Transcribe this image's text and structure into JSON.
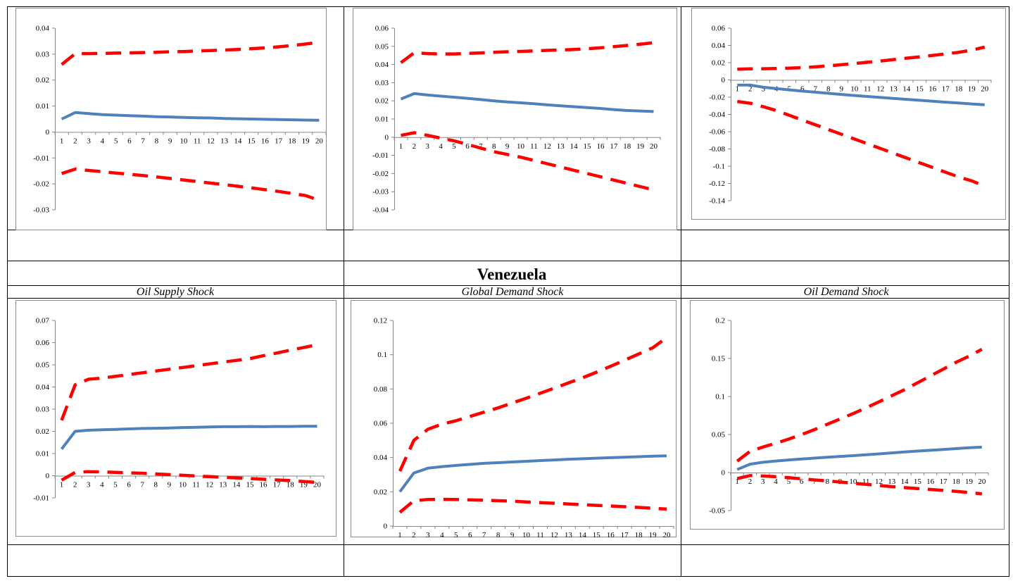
{
  "header": {
    "country": "Venezuela",
    "shock_labels": [
      "Oil Supply Shock",
      "Global Demand Shock",
      "Oil Demand Shock"
    ]
  },
  "colors": {
    "response": "#4f81bd",
    "bands": "#ff0000",
    "grid_border": "#000000",
    "chart_border": "#8c8c8c"
  },
  "chart_data": [
    {
      "type": "line",
      "row": "top",
      "x": [
        1,
        2,
        3,
        4,
        5,
        6,
        7,
        8,
        9,
        10,
        11,
        12,
        13,
        14,
        15,
        16,
        17,
        18,
        19,
        20
      ],
      "ylim": [
        -0.03,
        0.04
      ],
      "yticks": [
        "0.04",
        "0.03",
        "0.02",
        "0.01",
        "0",
        "-0.01",
        "-0.02",
        "-0.03"
      ],
      "ytick_values": [
        0.04,
        0.03,
        0.02,
        0.01,
        0,
        -0.01,
        -0.02,
        -0.03
      ],
      "series": [
        {
          "style": "solid",
          "values": [
            0.005,
            0.0075,
            0.0071,
            0.0067,
            0.0065,
            0.0063,
            0.0061,
            0.0059,
            0.0058,
            0.0056,
            0.0055,
            0.0054,
            0.0052,
            0.0051,
            0.005,
            0.0049,
            0.0048,
            0.0047,
            0.0046,
            0.0045
          ]
        },
        {
          "style": "dashed",
          "values": [
            0.026,
            0.0302,
            0.0302,
            0.0303,
            0.0304,
            0.0305,
            0.0306,
            0.0307,
            0.0309,
            0.031,
            0.0312,
            0.0314,
            0.0316,
            0.0318,
            0.0321,
            0.0324,
            0.0328,
            0.0333,
            0.0339,
            0.0346
          ]
        },
        {
          "style": "dashed",
          "values": [
            -0.016,
            -0.0143,
            -0.0148,
            -0.0153,
            -0.0158,
            -0.0163,
            -0.0168,
            -0.0173,
            -0.0179,
            -0.0185,
            -0.0191,
            -0.0197,
            -0.0203,
            -0.0209,
            -0.0215,
            -0.0222,
            -0.0229,
            -0.0237,
            -0.0245,
            -0.0263
          ]
        }
      ]
    },
    {
      "type": "line",
      "row": "top",
      "x": [
        1,
        2,
        3,
        4,
        5,
        6,
        7,
        8,
        9,
        10,
        11,
        12,
        13,
        14,
        15,
        16,
        17,
        18,
        19,
        20
      ],
      "ylim": [
        -0.04,
        0.06
      ],
      "yticks": [
        "0.06",
        "0.05",
        "0.04",
        "0.03",
        "0.02",
        "0.01",
        "0",
        "-0.01",
        "-0.02",
        "-0.03",
        "-0.04"
      ],
      "ytick_values": [
        0.06,
        0.05,
        0.04,
        0.03,
        0.02,
        0.01,
        0,
        -0.01,
        -0.02,
        -0.03,
        -0.04
      ],
      "series": [
        {
          "style": "solid",
          "values": [
            0.021,
            0.024,
            0.0232,
            0.0226,
            0.022,
            0.0214,
            0.0207,
            0.02,
            0.0194,
            0.0189,
            0.0184,
            0.0178,
            0.0173,
            0.0168,
            0.0163,
            0.0158,
            0.0152,
            0.0147,
            0.0144,
            0.0141
          ]
        },
        {
          "style": "dashed",
          "values": [
            0.041,
            0.0465,
            0.046,
            0.0458,
            0.0458,
            0.0461,
            0.0464,
            0.0467,
            0.047,
            0.0472,
            0.0475,
            0.0478,
            0.048,
            0.0483,
            0.0487,
            0.0492,
            0.0498,
            0.0505,
            0.0512,
            0.052
          ]
        },
        {
          "style": "dashed",
          "values": [
            0.001,
            0.0025,
            0.001,
            -0.0005,
            -0.002,
            -0.004,
            -0.006,
            -0.008,
            -0.0095,
            -0.011,
            -0.0128,
            -0.0146,
            -0.0164,
            -0.0182,
            -0.02,
            -0.0218,
            -0.0236,
            -0.0254,
            -0.0272,
            -0.029
          ]
        }
      ]
    },
    {
      "type": "line",
      "row": "top",
      "x": [
        1,
        2,
        3,
        4,
        5,
        6,
        7,
        8,
        9,
        10,
        11,
        12,
        13,
        14,
        15,
        16,
        17,
        18,
        19,
        20
      ],
      "ylim": [
        -0.14,
        0.06
      ],
      "yticks": [
        "0.06",
        "0.04",
        "0.02",
        "0",
        "-0.02",
        "-0.04",
        "-0.06",
        "-0.08",
        "-0.1",
        "-0.12",
        "-0.14"
      ],
      "ytick_values": [
        0.06,
        0.04,
        0.02,
        0,
        -0.02,
        -0.04,
        -0.06,
        -0.08,
        -0.1,
        -0.12,
        -0.14
      ],
      "series": [
        {
          "style": "solid",
          "values": [
            -0.006,
            -0.006,
            -0.0085,
            -0.01,
            -0.0115,
            -0.013,
            -0.0142,
            -0.0155,
            -0.0168,
            -0.018,
            -0.0192,
            -0.0203,
            -0.0214,
            -0.0225,
            -0.0236,
            -0.0247,
            -0.0258,
            -0.0268,
            -0.0278,
            -0.0288
          ]
        },
        {
          "style": "dashed",
          "values": [
            0.0125,
            0.0128,
            0.013,
            0.0133,
            0.0137,
            0.0143,
            0.0152,
            0.0163,
            0.0176,
            0.019,
            0.0205,
            0.022,
            0.0236,
            0.0252,
            0.0268,
            0.0284,
            0.0302,
            0.032,
            0.0345,
            0.038
          ]
        },
        {
          "style": "dashed",
          "values": [
            -0.025,
            -0.027,
            -0.031,
            -0.0355,
            -0.041,
            -0.0465,
            -0.052,
            -0.0575,
            -0.063,
            -0.0685,
            -0.074,
            -0.0795,
            -0.085,
            -0.0905,
            -0.096,
            -0.1015,
            -0.107,
            -0.1125,
            -0.117,
            -0.123
          ]
        }
      ]
    },
    {
      "type": "line",
      "row": "bottom",
      "x": [
        1,
        2,
        3,
        4,
        5,
        6,
        7,
        8,
        9,
        10,
        11,
        12,
        13,
        14,
        15,
        16,
        17,
        18,
        19,
        20
      ],
      "ylim": [
        -0.01,
        0.07
      ],
      "yticks": [
        "0.07",
        "0.06",
        "0.05",
        "0.04",
        "0.03",
        "0.02",
        "0.01",
        "0",
        "-0.01"
      ],
      "ytick_values": [
        0.07,
        0.06,
        0.05,
        0.04,
        0.03,
        0.02,
        0.01,
        0,
        -0.01
      ],
      "series": [
        {
          "style": "solid",
          "values": [
            0.012,
            0.02,
            0.0205,
            0.0207,
            0.0209,
            0.0211,
            0.0213,
            0.0214,
            0.0215,
            0.0217,
            0.0218,
            0.022,
            0.0221,
            0.0221,
            0.0222,
            0.0221,
            0.0222,
            0.0222,
            0.0223,
            0.0223
          ]
        },
        {
          "style": "dashed",
          "values": [
            0.025,
            0.041,
            0.0435,
            0.044,
            0.0448,
            0.0456,
            0.0464,
            0.0472,
            0.048,
            0.0488,
            0.0496,
            0.0504,
            0.0512,
            0.052,
            0.0528,
            0.0541,
            0.0553,
            0.0566,
            0.0578,
            0.059
          ]
        },
        {
          "style": "dashed",
          "values": [
            -0.002,
            0.0015,
            0.0018,
            0.0017,
            0.0015,
            0.0013,
            0.0011,
            0.0008,
            0.0005,
            0.0002,
            -0.0001,
            -0.0004,
            -0.0007,
            -0.001,
            -0.0013,
            -0.0016,
            -0.0019,
            -0.0022,
            -0.0026,
            -0.003
          ]
        }
      ]
    },
    {
      "type": "line",
      "row": "bottom",
      "x": [
        1,
        2,
        3,
        4,
        5,
        6,
        7,
        8,
        9,
        10,
        11,
        12,
        13,
        14,
        15,
        16,
        17,
        18,
        19,
        20
      ],
      "ylim": [
        0,
        0.12
      ],
      "yticks": [
        "0.12",
        "0.1",
        "0.08",
        "0.06",
        "0.04",
        "0.02",
        "0"
      ],
      "ytick_values": [
        0.12,
        0.1,
        0.08,
        0.06,
        0.04,
        0.02,
        0
      ],
      "series": [
        {
          "style": "solid",
          "values": [
            0.02,
            0.031,
            0.0338,
            0.0347,
            0.0354,
            0.036,
            0.0366,
            0.037,
            0.0374,
            0.0378,
            0.0382,
            0.0386,
            0.039,
            0.0393,
            0.0396,
            0.0399,
            0.0402,
            0.0405,
            0.0408,
            0.041
          ]
        },
        {
          "style": "dashed",
          "values": [
            0.032,
            0.05,
            0.0565,
            0.0595,
            0.0615,
            0.064,
            0.0665,
            0.069,
            0.0718,
            0.0746,
            0.0775,
            0.0805,
            0.0835,
            0.0865,
            0.0898,
            0.0932,
            0.0968,
            0.1004,
            0.104,
            0.11
          ]
        },
        {
          "style": "dashed",
          "values": [
            0.008,
            0.0148,
            0.0155,
            0.0156,
            0.0155,
            0.0153,
            0.0151,
            0.0148,
            0.0145,
            0.0141,
            0.0137,
            0.0133,
            0.0129,
            0.0125,
            0.0121,
            0.0117,
            0.0113,
            0.0109,
            0.0104,
            0.0099
          ]
        }
      ]
    },
    {
      "type": "line",
      "row": "bottom",
      "x": [
        1,
        2,
        3,
        4,
        5,
        6,
        7,
        8,
        9,
        10,
        11,
        12,
        13,
        14,
        15,
        16,
        17,
        18,
        19,
        20
      ],
      "ylim": [
        -0.05,
        0.2
      ],
      "yticks": [
        "0.2",
        "0.15",
        "0.1",
        "0.05",
        "0",
        "-0.05"
      ],
      "ytick_values": [
        0.2,
        0.15,
        0.1,
        0.05,
        0,
        -0.05
      ],
      "series": [
        {
          "style": "solid",
          "values": [
            0.004,
            0.011,
            0.0135,
            0.0152,
            0.0166,
            0.0178,
            0.019,
            0.0201,
            0.0212,
            0.0222,
            0.0233,
            0.0245,
            0.0258,
            0.0271,
            0.0282,
            0.0293,
            0.0304,
            0.0315,
            0.0326,
            0.0334
          ]
        },
        {
          "style": "dashed",
          "values": [
            0.015,
            0.028,
            0.0335,
            0.0385,
            0.044,
            0.05,
            0.0565,
            0.0635,
            0.0705,
            0.0775,
            0.085,
            0.093,
            0.101,
            0.109,
            0.118,
            0.127,
            0.136,
            0.145,
            0.153,
            0.162
          ]
        },
        {
          "style": "dashed",
          "values": [
            -0.008,
            -0.004,
            -0.0045,
            -0.0055,
            -0.0068,
            -0.0082,
            -0.0097,
            -0.011,
            -0.0125,
            -0.014,
            -0.0155,
            -0.017,
            -0.0185,
            -0.0198,
            -0.021,
            -0.0222,
            -0.0235,
            -0.0248,
            -0.0262,
            -0.028
          ]
        }
      ]
    }
  ]
}
